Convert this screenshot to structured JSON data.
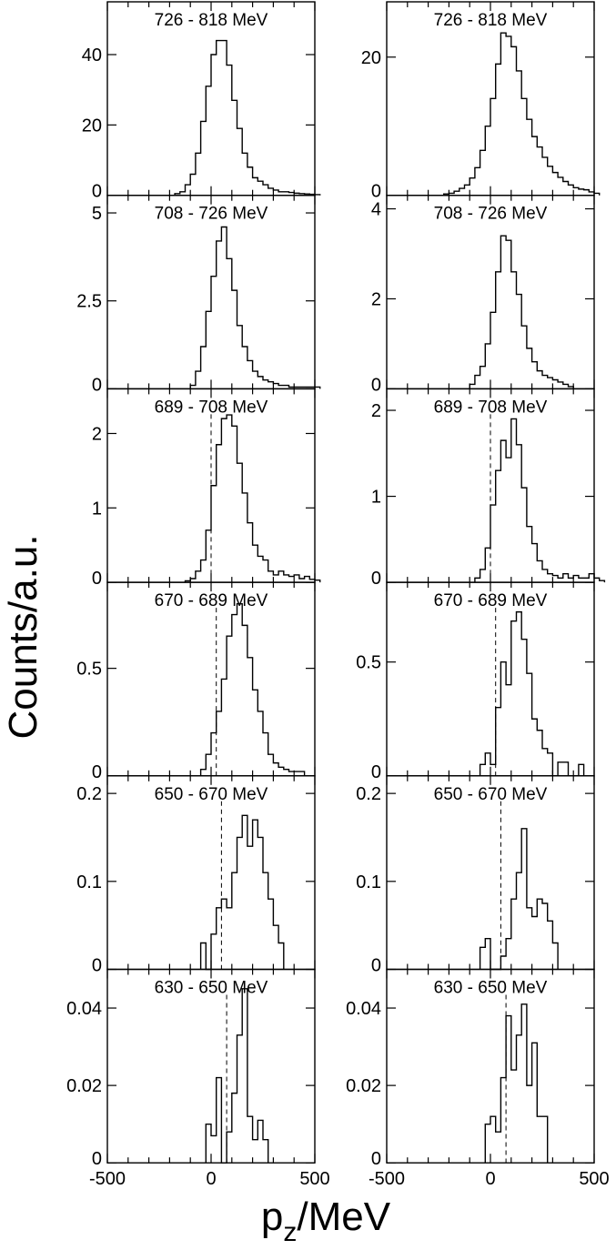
{
  "figure": {
    "ylabel": "Counts/a.u.",
    "xlabel_main": "p",
    "xlabel_sub": "z",
    "xlabel_unit": "/MeV"
  },
  "chart_data": {
    "type": "bar",
    "xlim": [
      -500,
      500
    ],
    "x_ticks": [
      -500,
      0,
      500
    ],
    "x_tick_labels": [
      "-500",
      "0",
      "500"
    ],
    "bin_width": 25,
    "columns": 2,
    "rows": 6,
    "panels": [
      {
        "label": "726 - 818 MeV",
        "ylim": [
          0,
          55
        ],
        "yticks": [
          0,
          20,
          40
        ],
        "ytick_labels": [
          "0",
          "20",
          "40"
        ],
        "cutoff": null,
        "x_start": -175,
        "values": [
          0.5,
          1,
          3,
          6,
          12,
          21,
          31,
          40,
          44,
          44,
          37,
          27,
          19,
          12,
          8,
          5,
          4,
          3,
          2,
          1.5,
          1,
          1,
          0.8,
          0.6,
          0.5,
          0.4,
          0.3,
          0.2
        ]
      },
      {
        "label": "726 - 818 MeV",
        "ylim": [
          0,
          28
        ],
        "yticks": [
          0,
          20
        ],
        "ytick_labels": [
          "0",
          "20"
        ],
        "cutoff": null,
        "x_start": -225,
        "values": [
          0.2,
          0.3,
          0.6,
          1,
          1.5,
          2.5,
          4,
          6.5,
          10,
          14,
          19,
          23.5,
          23,
          21.5,
          18,
          14,
          11,
          8.5,
          7,
          5.5,
          4.2,
          3.3,
          2.6,
          2,
          1.5,
          1.1,
          0.9,
          0.8,
          0.5,
          0.3
        ]
      },
      {
        "label": "708 - 726 MeV",
        "ylim": [
          0,
          5.5
        ],
        "yticks": [
          0,
          2.5,
          5
        ],
        "ytick_labels": [
          "0",
          "2.5",
          "5"
        ],
        "cutoff": null,
        "x_start": -100,
        "values": [
          0.1,
          0.5,
          1.2,
          2.2,
          3.2,
          4.2,
          4.6,
          3.7,
          2.8,
          1.8,
          1.2,
          0.8,
          0.5,
          0.35,
          0.25,
          0.2,
          0.15,
          0.1,
          0.1,
          0.05,
          0.05,
          0.05,
          0.05,
          0.05,
          0.05
        ]
      },
      {
        "label": "708 - 726 MeV",
        "ylim": [
          0,
          4.3
        ],
        "yticks": [
          0,
          2,
          4
        ],
        "ytick_labels": [
          "0",
          "2",
          "4"
        ],
        "cutoff": null,
        "x_start": -100,
        "values": [
          0.1,
          0.3,
          0.5,
          1,
          1.7,
          2.6,
          3.4,
          3.3,
          2.6,
          2.1,
          1.4,
          0.9,
          0.6,
          0.4,
          0.3,
          0.25,
          0.2,
          0.15,
          0.1,
          0.05
        ]
      },
      {
        "label": "689 - 708 MeV",
        "ylim": [
          0,
          2.6
        ],
        "yticks": [
          0,
          1,
          2
        ],
        "ytick_labels": [
          "0",
          "1",
          "2"
        ],
        "cutoff": 0,
        "x_start": -125,
        "values": [
          0.02,
          0.05,
          0.15,
          0.3,
          0.7,
          1.3,
          1.85,
          2.2,
          2.25,
          2.1,
          1.6,
          1.2,
          0.8,
          0.5,
          0.35,
          0.3,
          0.15,
          0.1,
          0.15,
          0.1,
          0.08,
          0.1,
          0.05,
          0.08,
          0.04,
          0.03
        ]
      },
      {
        "label": "689 - 708 MeV",
        "ylim": [
          0,
          2.25
        ],
        "yticks": [
          0,
          1,
          2
        ],
        "ytick_labels": [
          "0",
          "1",
          "2"
        ],
        "cutoff": 0,
        "x_start": -75,
        "values": [
          0.05,
          0.15,
          0.4,
          0.9,
          1.3,
          1.65,
          1.45,
          1.9,
          1.6,
          1.1,
          0.65,
          0.45,
          0.25,
          0.15,
          0.1,
          0.08,
          0.05,
          0.1,
          0.05,
          0.08,
          0.05,
          0.05,
          0.1,
          0.05,
          0.02
        ]
      },
      {
        "label": "670 - 689 MeV",
        "ylim": [
          0,
          0.9
        ],
        "yticks": [
          0,
          0.5
        ],
        "ytick_labels": [
          "0",
          "0.5"
        ],
        "cutoff": 25,
        "x_start": -50,
        "values": [
          0.03,
          0.1,
          0.2,
          0.3,
          0.45,
          0.65,
          0.75,
          0.8,
          0.7,
          0.55,
          0.4,
          0.3,
          0.2,
          0.1,
          0.06,
          0.04,
          0.03,
          0.02,
          0.02,
          0.02
        ]
      },
      {
        "label": "670 - 689 MeV",
        "ylim": [
          0,
          0.85
        ],
        "yticks": [
          0,
          0.5
        ],
        "ytick_labels": [
          "0",
          "0.5"
        ],
        "cutoff": 25,
        "x_start": -50,
        "values": [
          0.05,
          0.1,
          0.05,
          0.3,
          0.5,
          0.4,
          0.68,
          0.72,
          0.6,
          0.45,
          0.25,
          0.2,
          0.12,
          0.1,
          0,
          0.06,
          0.06,
          0,
          0,
          0.05
        ]
      },
      {
        "label": "650 - 670 MeV",
        "ylim": [
          0,
          0.22
        ],
        "yticks": [
          0,
          0.1,
          0.2
        ],
        "ytick_labels": [
          "0",
          "0.1",
          "0.2"
        ],
        "cutoff": 50,
        "x_start": -50,
        "values": [
          0.03,
          0,
          0.04,
          0.07,
          0.08,
          0.07,
          0.11,
          0.15,
          0.175,
          0.14,
          0.17,
          0.15,
          0.11,
          0.08,
          0.05,
          0.03
        ]
      },
      {
        "label": "650 - 670 MeV",
        "ylim": [
          0,
          0.22
        ],
        "yticks": [
          0,
          0.1,
          0.2
        ],
        "ytick_labels": [
          "0",
          "0.1",
          "0.2"
        ],
        "cutoff": 50,
        "x_start": -50,
        "values": [
          0.025,
          0.035,
          0,
          0,
          0.015,
          0.035,
          0.08,
          0.11,
          0.16,
          0.07,
          0.06,
          0.08,
          0.075,
          0.055,
          0.03
        ]
      },
      {
        "label": "630 - 650 MeV",
        "ylim": [
          0,
          0.05
        ],
        "yticks": [
          0,
          0.02,
          0.04
        ],
        "ytick_labels": [
          "0",
          "0.02",
          "0.04"
        ],
        "cutoff": 75,
        "x_start": -25,
        "values": [
          0.01,
          0.007,
          0.022,
          0,
          0.008,
          0.018,
          0.033,
          0.045,
          0.012,
          0.006,
          0.011,
          0.006
        ]
      },
      {
        "label": "630 - 650 MeV",
        "ylim": [
          0,
          0.05
        ],
        "yticks": [
          0,
          0.02,
          0.04
        ],
        "ytick_labels": [
          "0",
          "0.02",
          "0.04"
        ],
        "cutoff": 75,
        "x_start": -25,
        "values": [
          0.01,
          0.012,
          0.008,
          0.022,
          0.038,
          0.024,
          0.033,
          0.041,
          0.02,
          0.031,
          0.012,
          0.012
        ]
      }
    ]
  }
}
